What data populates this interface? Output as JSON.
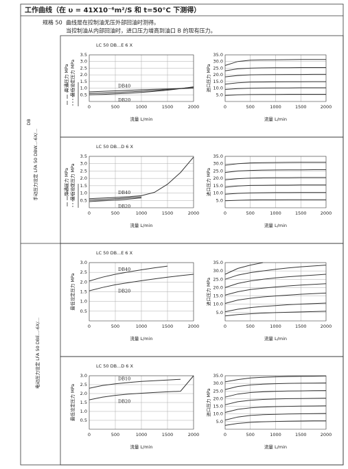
{
  "header": {
    "title": "工作曲线（在 υ = 41X10⁻⁶m²/S 和 t=50°C 下测得）"
  },
  "spec": "规格 50",
  "notes": [
    "曲线是在控制油无压外部回油时测得。",
    "当控制油从内部回油时，进口压力增高到油口 B 的现有压力。"
  ],
  "sections": [
    {
      "label": "手动压力设定 LFA 50 DBW...-6X/...",
      "sublabel": "DB"
    },
    {
      "label": "电动压力设定 LFA 50 DBE...-6X/..."
    }
  ],
  "panels": [
    {
      "subtitle": "LC 50 DB...E 6 X",
      "charts": [
        {
          "type": "line",
          "ylabels": [
            "旁通压力 MPa",
            "最低设定压力 MPa"
          ],
          "xlabel": "流量 L/min",
          "grid": true,
          "xlim": [
            0,
            2000
          ],
          "xticks": [
            0,
            500,
            1000,
            1500,
            2000
          ],
          "ylim": [
            0,
            3.5
          ],
          "yticks": [
            0.5,
            {
              "value": 1,
              "label": "1.0"
            },
            1.5,
            {
              "value": 2,
              "label": "2.0"
            },
            2.5,
            {
              "value": 3,
              "label": "3.0"
            },
            3.5
          ],
          "x": [
            0,
            250,
            500,
            750,
            1000,
            1250,
            1500,
            1750,
            2000
          ],
          "series": [
            {
              "name": "DB40",
              "values": [
                0.72,
                0.76,
                0.8,
                0.84,
                0.88,
                0.91,
                0.94,
                0.97,
                1.0
              ]
            },
            {
              "values": [
                0.6,
                0.63,
                0.67,
                0.72,
                0.77,
                0.83,
                0.9,
                0.98,
                1.07
              ]
            },
            {
              "name": "DB20",
              "values": [
                0.5,
                0.53,
                0.57,
                0.62,
                0.68,
                0.76,
                0.85,
                0.96,
                1.1
              ]
            }
          ]
        },
        {
          "type": "line",
          "ylabels": [
            "进口压力 MPa"
          ],
          "xlabel": "流量 L/min",
          "grid": true,
          "xlim": [
            0,
            2000
          ],
          "xticks": [
            0,
            500,
            1000,
            1500,
            2000
          ],
          "ylim": [
            0,
            35
          ],
          "yticks": [
            {
              "value": 5,
              "label": "5.0"
            },
            {
              "value": 10,
              "label": "10.0"
            },
            {
              "value": 15,
              "label": "15.0"
            },
            {
              "value": 20,
              "label": "20.0"
            },
            {
              "value": 25,
              "label": "25.0"
            },
            {
              "value": 30,
              "label": "30.0"
            },
            {
              "value": 35,
              "label": "35.0"
            }
          ],
          "x": [
            0,
            250,
            500,
            750,
            1000,
            1250,
            1500,
            1750,
            2000
          ],
          "series": [
            {
              "values": [
                27,
                30,
                31,
                31.2,
                31.3,
                31.4,
                31.5,
                31.5,
                31.5
              ]
            },
            {
              "values": [
                23,
                24.5,
                25,
                25.2,
                25.3,
                25.4,
                25.5,
                25.5,
                25.5
              ]
            },
            {
              "values": [
                18.5,
                19.5,
                20,
                20.1,
                20.2,
                20.3,
                20.3,
                20.4,
                20.4
              ]
            },
            {
              "values": [
                13,
                14,
                14.5,
                14.6,
                14.7,
                14.8,
                14.8,
                14.9,
                14.9
              ]
            },
            {
              "values": [
                9,
                9.6,
                10,
                10.1,
                10.2,
                10.2,
                10.3,
                10.3,
                10.3
              ]
            },
            {
              "values": [
                4.5,
                5,
                5.2,
                5.3,
                5.3,
                5.4,
                5.4,
                5.4,
                5.4
              ]
            }
          ]
        }
      ]
    },
    {
      "subtitle": "LC 50 DB...D 6 X",
      "charts": [
        {
          "type": "line",
          "ylabels": [
            "旁通压力 MPa",
            "最低设定压力 MPa"
          ],
          "xlabel": "流量 L/min",
          "grid": true,
          "xlim": [
            0,
            2000
          ],
          "xticks": [
            0,
            500,
            1000,
            1500,
            2000
          ],
          "ylim": [
            0,
            3.5
          ],
          "yticks": [
            0.5,
            {
              "value": 1,
              "label": "1.0"
            },
            1.5,
            {
              "value": 2,
              "label": "2.0"
            },
            2.5,
            {
              "value": 3,
              "label": "3.0"
            },
            3.5
          ],
          "x": [
            0,
            250,
            500,
            750,
            1000,
            1250,
            1500,
            1750,
            2000
          ],
          "series": [
            {
              "name": "DB40",
              "values": [
                0.62,
                0.66,
                0.7,
                0.75,
                0.82,
                1.05,
                1.6,
                2.4,
                3.45
              ]
            },
            {
              "values": [
                0.52,
                0.56,
                0.61,
                0.67,
                0.74,
                null,
                null,
                null,
                null
              ]
            },
            {
              "name": "DB20",
              "values": [
                0.42,
                0.47,
                0.52,
                0.59,
                0.67,
                null,
                null,
                null,
                null
              ]
            }
          ]
        },
        {
          "type": "line",
          "ylabels": [
            "进口压力 MPa"
          ],
          "xlabel": "流量 L/min",
          "grid": true,
          "xlim": [
            0,
            2000
          ],
          "xticks": [
            0,
            500,
            1000,
            1500,
            2000
          ],
          "ylim": [
            0,
            35
          ],
          "yticks": [
            {
              "value": 5,
              "label": "5.0"
            },
            {
              "value": 10,
              "label": "10.0"
            },
            {
              "value": 15,
              "label": "15.0"
            },
            {
              "value": 20,
              "label": "20.0"
            },
            {
              "value": 25,
              "label": "25.0"
            },
            {
              "value": 30,
              "label": "30.0"
            },
            {
              "value": 35,
              "label": "35.0"
            }
          ],
          "x": [
            0,
            250,
            500,
            750,
            1000,
            1250,
            1500,
            1750,
            2000
          ],
          "series": [
            {
              "values": [
                29,
                30,
                30.5,
                30.7,
                30.8,
                30.9,
                31,
                31,
                31
              ]
            },
            {
              "values": [
                24,
                25,
                25.4,
                25.6,
                25.7,
                25.8,
                25.8,
                25.9,
                25.9
              ]
            },
            {
              "values": [
                19,
                19.8,
                20.2,
                20.4,
                20.5,
                20.5,
                20.6,
                20.6,
                20.6
              ]
            },
            {
              "values": [
                14,
                14.8,
                15.2,
                15.3,
                15.4,
                15.4,
                15.5,
                15.5,
                15.5
              ]
            },
            {
              "values": [
                9.2,
                9.8,
                10.1,
                10.2,
                10.3,
                10.3,
                10.4,
                10.4,
                10.4
              ]
            },
            {
              "values": [
                4.8,
                5.1,
                5.3,
                5.4,
                5.4,
                5.5,
                5.5,
                5.5,
                5.5
              ]
            }
          ]
        }
      ]
    },
    {
      "subtitle": "LC 50 DB...E 6 X",
      "charts": [
        {
          "type": "line",
          "ylabels": [
            "最低设定压力 MPa"
          ],
          "xlabel": "流量 L/min",
          "grid": true,
          "xlim": [
            0,
            2000
          ],
          "xticks": [
            0,
            500,
            1000,
            1500,
            2000
          ],
          "ylim": [
            0,
            3
          ],
          "yticks": [
            0.5,
            {
              "value": 1,
              "label": "1.0"
            },
            1.5,
            {
              "value": 2,
              "label": "2.0"
            },
            2.5,
            {
              "value": 3,
              "label": "3.0"
            }
          ],
          "x": [
            0,
            250,
            500,
            750,
            1000,
            1250,
            1500,
            1750,
            2000
          ],
          "series": [
            {
              "name": "DB40",
              "values": [
                2.05,
                2.25,
                2.4,
                2.52,
                2.63,
                2.73,
                2.82,
                null,
                null
              ]
            },
            {
              "name": "DB20",
              "values": [
                1.55,
                1.72,
                1.86,
                1.97,
                2.07,
                2.16,
                2.25,
                2.33,
                2.4
              ]
            }
          ]
        },
        {
          "type": "line",
          "ylabels": [
            "进口压力 MPa"
          ],
          "xlabel": "流量 L/min",
          "grid": true,
          "xlim": [
            0,
            2000
          ],
          "xticks": [
            0,
            500,
            1000,
            1500,
            2000
          ],
          "ylim": [
            0,
            35
          ],
          "yticks": [
            {
              "value": 5,
              "label": "5.0"
            },
            {
              "value": 10,
              "label": "10.0"
            },
            {
              "value": 15,
              "label": "15.0"
            },
            {
              "value": 20,
              "label": "20.0"
            },
            {
              "value": 25,
              "label": "25.0"
            },
            {
              "value": 30,
              "label": "30.0"
            },
            {
              "value": 35,
              "label": "35.0"
            }
          ],
          "x": [
            0,
            250,
            500,
            750,
            1000,
            1250,
            1500,
            1750,
            2000
          ],
          "series": [
            {
              "values": [
                28,
                31.5,
                33.5,
                35,
                null,
                null,
                null,
                null,
                null
              ]
            },
            {
              "values": [
                25,
                27.5,
                29,
                30,
                31,
                31.8,
                32.5,
                33,
                33.5
              ]
            },
            {
              "values": [
                20,
                22.5,
                24,
                25,
                25.8,
                26.5,
                27,
                27.5,
                28
              ]
            },
            {
              "values": [
                15.5,
                17.5,
                18.8,
                19.7,
                20.4,
                21,
                21.5,
                21.9,
                22.3
              ]
            },
            {
              "values": [
                10.5,
                12.5,
                13.6,
                14.4,
                15,
                15.5,
                16,
                16.4,
                16.7
              ]
            },
            {
              "values": [
                5.5,
                7,
                8,
                8.7,
                9.2,
                9.7,
                10.1,
                10.4,
                10.7
              ]
            },
            {
              "values": [
                3,
                3.8,
                4.3,
                4.7,
                5,
                5.2,
                5.4,
                5.6,
                5.8
              ]
            }
          ]
        }
      ]
    },
    {
      "subtitle": "LC 50 DB...D 6 X",
      "charts": [
        {
          "type": "line",
          "ylabels": [
            "最低设定压力 MPa"
          ],
          "xlabel": "流量 L/min",
          "grid": true,
          "xlim": [
            0,
            2000
          ],
          "xticks": [
            0,
            500,
            1000,
            1500,
            2000
          ],
          "ylim": [
            0,
            3
          ],
          "yticks": [
            0.5,
            {
              "value": 1,
              "label": "1.0"
            },
            1.5,
            {
              "value": 2,
              "label": "2.0"
            },
            2.5,
            {
              "value": 3,
              "label": "3.0"
            }
          ],
          "x": [
            0,
            250,
            500,
            750,
            1000,
            1250,
            1500,
            1750,
            2000
          ],
          "series": [
            {
              "name": "DB10",
              "values": [
                2.3,
                2.45,
                2.55,
                2.62,
                2.68,
                2.72,
                2.76,
                2.8,
                null
              ]
            },
            {
              "name": "DB20",
              "values": [
                1.65,
                1.8,
                1.9,
                1.97,
                2.02,
                2.06,
                2.1,
                2.13,
                3.0
              ]
            }
          ]
        },
        {
          "type": "line",
          "ylabels": [
            "进口压力 MPa"
          ],
          "xlabel": "流量 L/min",
          "grid": true,
          "xlim": [
            0,
            2000
          ],
          "xticks": [
            0,
            500,
            1000,
            1500,
            2000
          ],
          "ylim": [
            0,
            35
          ],
          "yticks": [
            {
              "value": 5,
              "label": "5.0"
            },
            {
              "value": 10,
              "label": "10.0"
            },
            {
              "value": 15,
              "label": "15.0"
            },
            {
              "value": 20,
              "label": "20.0"
            },
            {
              "value": 25,
              "label": "25.0"
            },
            {
              "value": 30,
              "label": "30.0"
            },
            {
              "value": 35,
              "label": "35.0"
            }
          ],
          "x": [
            0,
            250,
            500,
            750,
            1000,
            1250,
            1500,
            1750,
            2000
          ],
          "series": [
            {
              "values": [
                31,
                32.5,
                33.5,
                34,
                34.3,
                34.5,
                34.6,
                34.7,
                34.8
              ]
            },
            {
              "values": [
                26,
                28,
                29,
                29.5,
                29.8,
                30,
                30.1,
                30.2,
                30.3
              ]
            },
            {
              "values": [
                21,
                23,
                24,
                24.5,
                24.8,
                25,
                25.1,
                25.2,
                25.3
              ]
            },
            {
              "values": [
                16,
                18,
                19,
                19.5,
                19.8,
                20,
                20.1,
                20.2,
                20.3
              ]
            },
            {
              "values": [
                11,
                13,
                14,
                14.5,
                14.8,
                15,
                15.1,
                15.2,
                15.3
              ]
            },
            {
              "values": [
                6,
                8,
                9,
                9.5,
                9.8,
                10,
                10.1,
                10.2,
                10.3
              ]
            },
            {
              "values": [
                2.5,
                3.8,
                4.5,
                4.9,
                5.1,
                5.3,
                5.4,
                5.5,
                5.5
              ]
            }
          ]
        }
      ]
    }
  ]
}
